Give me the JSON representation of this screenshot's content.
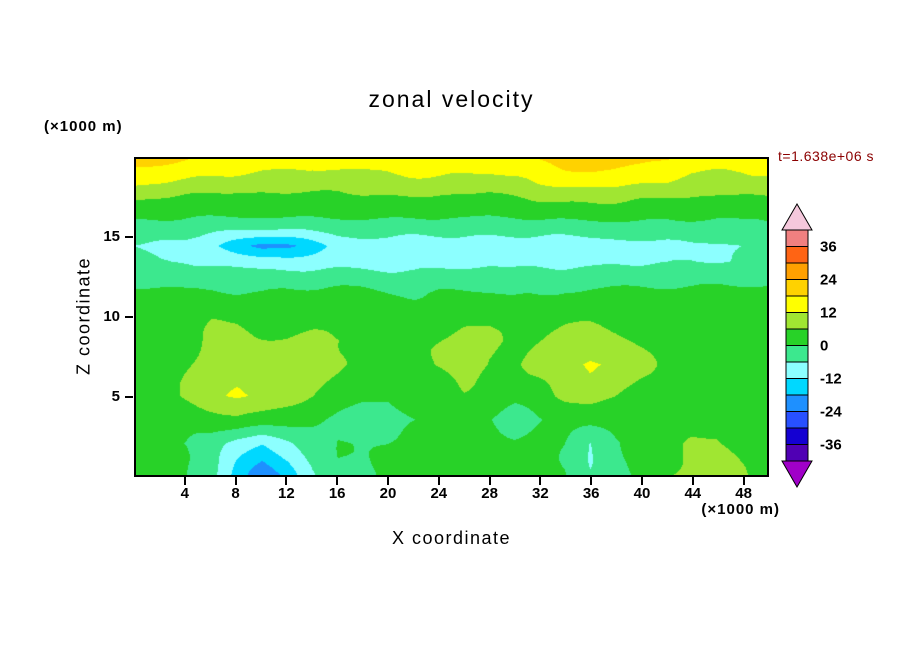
{
  "title": "zonal velocity",
  "annotation": {
    "text": "t=1.638e+06 s",
    "color": "#8b0000"
  },
  "axes": {
    "x": {
      "label": "X coordinate",
      "unit": "(×1000 m)",
      "min": 0,
      "max": 50,
      "ticks": [
        4,
        8,
        12,
        16,
        20,
        24,
        28,
        32,
        36,
        40,
        44,
        48
      ]
    },
    "y": {
      "label": "Z coordinate",
      "unit": "(×1000 m)",
      "min": 0,
      "max": 20,
      "ticks": [
        5,
        10,
        15
      ]
    }
  },
  "colorbar": {
    "tick_labels": [
      "36",
      "24",
      "12",
      "0",
      "-12",
      "-24",
      "-36"
    ],
    "min": -42,
    "max": 42,
    "segment_step": 6
  },
  "chart_data": {
    "type": "contour",
    "title": "zonal velocity",
    "xlabel": "X coordinate (×1000 m)",
    "ylabel": "Z coordinate (×1000 m)",
    "annotation": "t=1.638e+06 s",
    "x": [
      0,
      2,
      4,
      6,
      8,
      10,
      12,
      14,
      16,
      18,
      20,
      22,
      24,
      26,
      28,
      30,
      32,
      34,
      36,
      38,
      40,
      42,
      44,
      46,
      48,
      50
    ],
    "z": [
      0,
      2,
      3.5,
      5,
      7,
      8.5,
      10,
      11.5,
      12.5,
      13.5,
      14.5,
      15.5,
      16.5,
      17.5,
      18.5,
      20
    ],
    "values": [
      [
        2,
        2,
        1,
        -4,
        -14,
        -22,
        -16,
        -6,
        0,
        -2,
        1,
        4,
        5,
        4,
        3,
        2,
        1,
        0,
        -5,
        -2,
        2,
        5,
        8,
        9,
        6,
        4
      ],
      [
        1,
        1,
        0,
        -2,
        -8,
        -12,
        -8,
        -3,
        0,
        -1,
        0,
        2,
        3,
        3,
        2,
        1,
        1,
        0,
        -6,
        -1,
        2,
        4,
        6,
        6,
        4,
        3
      ],
      [
        1,
        2,
        3,
        4,
        5,
        4,
        3,
        2,
        0,
        -2,
        -3,
        -1,
        1,
        1,
        0,
        -4,
        -1,
        1,
        2,
        2,
        1,
        2,
        4,
        5,
        4,
        3
      ],
      [
        2,
        4,
        7,
        10,
        13,
        12,
        9,
        6,
        3,
        1,
        0,
        2,
        4,
        5,
        4,
        2,
        4,
        7,
        9,
        7,
        4,
        3,
        4,
        5,
        4,
        3
      ],
      [
        2,
        4,
        6,
        8,
        9,
        9,
        8,
        9,
        7,
        4,
        3,
        5,
        7,
        8,
        6,
        5,
        8,
        11,
        13,
        11,
        7,
        4,
        3,
        3,
        2,
        2
      ],
      [
        3,
        4,
        5,
        6,
        7,
        7,
        7,
        8,
        7,
        5,
        4,
        5,
        6,
        7,
        6,
        5,
        6,
        8,
        9,
        8,
        6,
        4,
        3,
        3,
        3,
        3
      ],
      [
        3,
        4,
        4,
        5,
        5,
        4,
        4,
        4,
        4,
        4,
        3,
        3,
        4,
        5,
        5,
        4,
        4,
        5,
        5,
        4,
        4,
        3,
        3,
        3,
        3,
        3
      ],
      [
        2,
        2,
        1,
        1,
        0,
        0,
        1,
        1,
        1,
        1,
        0,
        0,
        1,
        1,
        1,
        0,
        0,
        1,
        1,
        1,
        1,
        1,
        1,
        2,
        2,
        2
      ],
      [
        -2,
        -2,
        -3,
        -3,
        -4,
        -4,
        -4,
        -4,
        -3,
        -3,
        -4,
        -4,
        -3,
        -3,
        -3,
        -4,
        -4,
        -4,
        -3,
        -3,
        -3,
        -3,
        -3,
        -2,
        -2,
        -2
      ],
      [
        -5,
        -6,
        -6,
        -7,
        -8,
        -9,
        -9,
        -8,
        -8,
        -8,
        -8,
        -8,
        -7,
        -7,
        -7,
        -8,
        -8,
        -8,
        -8,
        -7,
        -7,
        -7,
        -6,
        -6,
        -5,
        -5
      ],
      [
        -6,
        -7,
        -8,
        -11,
        -16,
        -20,
        -19,
        -15,
        -10,
        -8,
        -8,
        -8,
        -8,
        -8,
        -8,
        -8,
        -8,
        -8,
        -8,
        -8,
        -8,
        -8,
        -7,
        -7,
        -6,
        -6
      ],
      [
        -2,
        -3,
        -4,
        -5,
        -6,
        -7,
        -7,
        -6,
        -5,
        -4,
        -4,
        -4,
        -4,
        -4,
        -4,
        -4,
        -4,
        -4,
        -4,
        -4,
        -4,
        -3,
        -3,
        -3,
        -2,
        -2
      ],
      [
        2,
        2,
        1,
        1,
        1,
        1,
        1,
        1,
        1,
        2,
        2,
        2,
        2,
        2,
        1,
        1,
        2,
        2,
        2,
        2,
        2,
        1,
        1,
        1,
        2,
        2
      ],
      [
        7,
        6,
        5,
        5,
        4,
        4,
        4,
        4,
        4,
        5,
        5,
        5,
        5,
        5,
        4,
        5,
        6,
        7,
        7,
        7,
        6,
        5,
        5,
        5,
        5,
        6
      ],
      [
        13,
        12,
        11,
        10,
        10,
        9,
        9,
        9,
        9,
        10,
        10,
        10,
        10,
        10,
        9,
        10,
        12,
        13,
        14,
        14,
        13,
        12,
        10,
        10,
        10,
        11
      ],
      [
        20,
        19,
        18,
        17,
        16,
        15,
        15,
        14,
        15,
        15,
        15,
        16,
        16,
        15,
        15,
        16,
        18,
        21,
        22,
        21,
        20,
        18,
        16,
        15,
        15,
        16
      ]
    ],
    "levels": [
      -42,
      -36,
      -30,
      -24,
      -18,
      -12,
      -6,
      0,
      6,
      12,
      18,
      24,
      30,
      36,
      42
    ],
    "bin_colors": [
      "#a000c8",
      "#5000b4",
      "#1400d2",
      "#2850ff",
      "#1e90ff",
      "#00d8ff",
      "#8cffff",
      "#3ce88e",
      "#28d228",
      "#a0e632",
      "#ffff00",
      "#ffd200",
      "#ffa000",
      "#ff6414",
      "#f08080",
      "#f5c8dc"
    ]
  }
}
